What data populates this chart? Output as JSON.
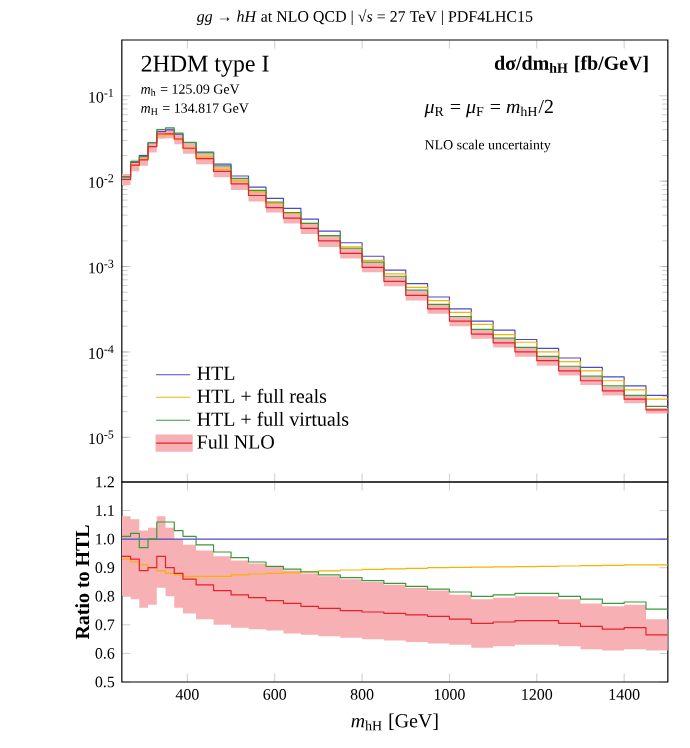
{
  "chart_data": [
    {
      "type": "step",
      "title": "*gg* → *hH* at NLO QCD | √*s* = 27 TeV | PDF4LHC15",
      "ylabel": "dσ/dm$_{hH}$ [fb/GeV]",
      "annotations": [
        "2HDM type I",
        "*m*$_{h}$ = 125.09 GeV",
        "*m*$_{H}$ = 134.817 GeV",
        "*μ*$_{R}$ = *μ*$_{F}$ = *m*$_{hH}$/2",
        "NLO scale uncertainty"
      ],
      "x": [
        250,
        270,
        290,
        310,
        330,
        350,
        370,
        390,
        420,
        460,
        500,
        540,
        580,
        620,
        660,
        700,
        750,
        800,
        850,
        900,
        950,
        1000,
        1050,
        1100,
        1150,
        1200,
        1250,
        1300,
        1350,
        1400,
        1450,
        1500
      ],
      "xlim": [
        250,
        1500
      ],
      "xticks": [
        400,
        600,
        800,
        1000,
        1200,
        1400
      ],
      "ylim": [
        3e-06,
        0.45
      ],
      "yticks": [
        {
          "value": 1e-05,
          "label": "10$^{-5}$"
        },
        {
          "value": 0.0001,
          "label": "10$^{-4}$"
        },
        {
          "value": 0.001,
          "label": "10$^{-3}$"
        },
        {
          "value": 0.01,
          "label": "10$^{-2}$"
        },
        {
          "value": 0.1,
          "label": "10$^{-1}$"
        }
      ],
      "log": true,
      "tick_labels": "y",
      "legend": "bottom left",
      "series": [
        {
          "name": "HTL",
          "color": "#4a4ac8",
          "values": [
            0.0112,
            0.0166,
            0.02,
            0.0282,
            0.038,
            0.0398,
            0.0355,
            0.0282,
            0.0219,
            0.0158,
            0.0115,
            0.0085,
            0.0063,
            0.0048,
            0.0036,
            0.0026,
            0.0019,
            0.00132,
            0.00091,
            0.00063,
            0.00044,
            0.00032,
            0.00023,
            0.00018,
            0.00014,
            0.00011,
            8.5e-05,
            6.6e-05,
            5.1e-05,
            4e-05,
            3.1e-05,
            3.1e-05
          ]
        },
        {
          "name": "HTL + full reals",
          "color": "#f5b400",
          "values": [
            0.0104,
            0.0153,
            0.0182,
            0.0254,
            0.0338,
            0.035,
            0.0311,
            0.0245,
            0.0191,
            0.0137,
            0.0101,
            0.0075,
            0.0055,
            0.0042,
            0.0032,
            0.0023,
            0.0017,
            0.00118,
            0.00082,
            0.00057,
            0.0004,
            0.00029,
            0.00021,
            0.00016,
            0.00013,
            0.0001,
            7.7e-05,
            6e-05,
            4.6e-05,
            3.6e-05,
            2.8e-05,
            2.8e-05
          ]
        },
        {
          "name": "HTL + full virtuals",
          "color": "#3a9a3a",
          "values": [
            0.0113,
            0.0169,
            0.0194,
            0.0282,
            0.0403,
            0.0422,
            0.0366,
            0.0285,
            0.0215,
            0.0151,
            0.0108,
            0.0078,
            0.0057,
            0.0043,
            0.0032,
            0.0023,
            0.00164,
            0.00113,
            0.00077,
            0.00053,
            0.00036,
            0.00026,
            0.000184,
            0.000145,
            0.000113,
            8.9e-05,
            6.8e-05,
            5.2e-05,
            4e-05,
            3.1e-05,
            2.3e-05,
            2.3e-05
          ]
        },
        {
          "name": "Full NLO",
          "color": "#e8202a",
          "values": [
            0.0105,
            0.0154,
            0.0178,
            0.0254,
            0.0357,
            0.0358,
            0.0312,
            0.0243,
            0.0184,
            0.013,
            0.0093,
            0.0068,
            0.0049,
            0.0037,
            0.0028,
            0.002,
            0.00143,
            0.00098,
            0.00067,
            0.00046,
            0.00032,
            0.00023,
            0.000162,
            0.000128,
            0.0001,
            7.9e-05,
            6e-05,
            4.6e-05,
            3.5e-05,
            2.8e-05,
            2.1e-05,
            2.1e-05
          ],
          "lower": [
            0.009,
            0.0131,
            0.0152,
            0.0217,
            0.0315,
            0.0318,
            0.027,
            0.0209,
            0.0158,
            0.0111,
            0.0079,
            0.0058,
            0.0043,
            0.0032,
            0.0024,
            0.0017,
            0.00124,
            0.00086,
            0.00059,
            0.0004,
            0.00028,
            0.0002,
            0.000143,
            0.000113,
            8.8e-05,
            6.9e-05,
            5.3e-05,
            4.1e-05,
            3.1e-05,
            2.5e-05,
            1.9e-05,
            1.9e-05
          ],
          "upper": [
            0.0121,
            0.0178,
            0.0206,
            0.029,
            0.041,
            0.0414,
            0.0355,
            0.0276,
            0.021,
            0.0149,
            0.0106,
            0.0078,
            0.0057,
            0.0043,
            0.0032,
            0.0023,
            0.00163,
            0.00112,
            0.00076,
            0.00052,
            0.00036,
            0.00026,
            0.000182,
            0.000143,
            0.000112,
            8.8e-05,
            6.7e-05,
            5.1e-05,
            3.9e-05,
            3.1e-05,
            2.2e-05,
            2.2e-05
          ]
        }
      ]
    },
    {
      "type": "step",
      "xlabel": "*m*$_{hH}$ [GeV]",
      "ylabel": "Ratio to HTL",
      "x": [
        250,
        270,
        290,
        310,
        330,
        350,
        370,
        390,
        420,
        460,
        500,
        540,
        580,
        620,
        660,
        700,
        750,
        800,
        850,
        900,
        950,
        1000,
        1050,
        1100,
        1150,
        1200,
        1250,
        1300,
        1350,
        1400,
        1450,
        1500
      ],
      "xlim": [
        250,
        1500
      ],
      "xticks": [
        400,
        600,
        800,
        1000,
        1200,
        1400
      ],
      "ylim": [
        0.5,
        1.2
      ],
      "yticks": [
        0.5,
        0.6,
        0.7,
        0.8,
        0.9,
        {
          "value": 1.0,
          "label": "1.0"
        },
        1.1,
        1.2
      ],
      "series": [
        {
          "color": "#4a4ac8",
          "values": [
            1.0,
            1.0,
            1.0,
            1.0,
            1.0,
            1.0,
            1.0,
            1.0,
            1.0,
            1.0,
            1.0,
            1.0,
            1.0,
            1.0,
            1.0,
            1.0,
            1.0,
            1.0,
            1.0,
            1.0,
            1.0,
            1.0,
            1.0,
            1.0,
            1.0,
            1.0,
            1.0,
            1.0,
            1.0,
            1.0,
            1.0,
            1.0
          ]
        },
        {
          "color": "#f5b400",
          "values": [
            0.93,
            0.92,
            0.91,
            0.9,
            0.89,
            0.88,
            0.875,
            0.87,
            0.87,
            0.87,
            0.875,
            0.878,
            0.88,
            0.883,
            0.886,
            0.889,
            0.892,
            0.894,
            0.896,
            0.898,
            0.9,
            0.901,
            0.902,
            0.903,
            0.904,
            0.905,
            0.906,
            0.907,
            0.908,
            0.91,
            0.91,
            0.91
          ]
        },
        {
          "color": "#3a9a3a",
          "values": [
            1.01,
            1.02,
            0.97,
            1.0,
            1.06,
            1.06,
            1.03,
            1.01,
            0.98,
            0.955,
            0.935,
            0.92,
            0.905,
            0.895,
            0.885,
            0.875,
            0.865,
            0.855,
            0.845,
            0.835,
            0.825,
            0.815,
            0.8,
            0.805,
            0.81,
            0.81,
            0.8,
            0.79,
            0.775,
            0.78,
            0.755,
            0.755
          ]
        },
        {
          "color": "#e8202a",
          "values": [
            0.94,
            0.93,
            0.89,
            0.9,
            0.94,
            0.9,
            0.88,
            0.86,
            0.84,
            0.82,
            0.805,
            0.795,
            0.785,
            0.775,
            0.765,
            0.758,
            0.75,
            0.745,
            0.74,
            0.735,
            0.73,
            0.72,
            0.705,
            0.71,
            0.715,
            0.715,
            0.705,
            0.695,
            0.685,
            0.69,
            0.665,
            0.665
          ],
          "lower": [
            0.8,
            0.79,
            0.76,
            0.77,
            0.83,
            0.8,
            0.76,
            0.74,
            0.72,
            0.7,
            0.69,
            0.685,
            0.68,
            0.67,
            0.665,
            0.66,
            0.655,
            0.65,
            0.645,
            0.64,
            0.635,
            0.63,
            0.62,
            0.625,
            0.63,
            0.63,
            0.625,
            0.615,
            0.61,
            0.615,
            0.61,
            0.61
          ],
          "upper": [
            1.08,
            1.07,
            1.03,
            1.04,
            1.08,
            1.04,
            1.0,
            0.98,
            0.96,
            0.94,
            0.925,
            0.915,
            0.905,
            0.89,
            0.88,
            0.87,
            0.86,
            0.85,
            0.84,
            0.83,
            0.82,
            0.805,
            0.79,
            0.795,
            0.8,
            0.8,
            0.79,
            0.775,
            0.765,
            0.77,
            0.72,
            0.72
          ]
        }
      ]
    }
  ]
}
